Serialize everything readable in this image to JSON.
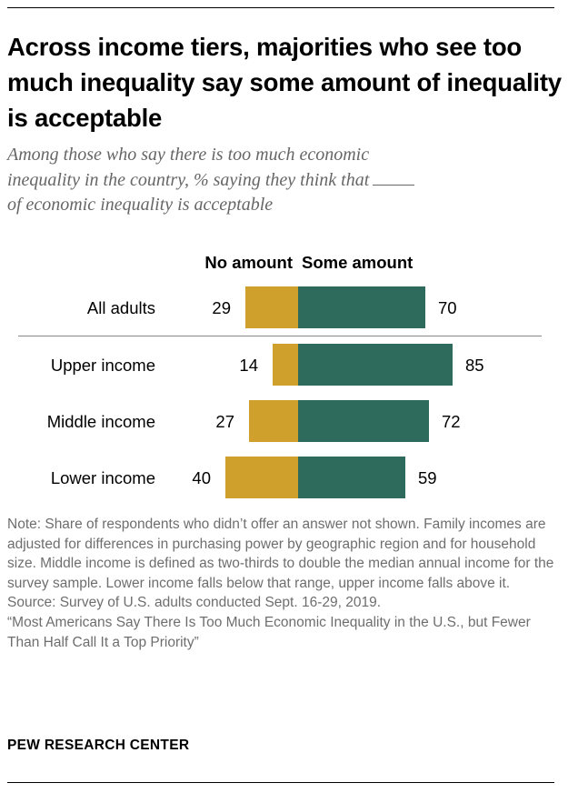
{
  "title": "Across income tiers, majorities who see too much inequality say some amount of inequality is acceptable",
  "subtitle_line1": "Among those who say there is too much economic",
  "subtitle_line2": "inequality in the country, % saying they think that",
  "subtitle_line3": "of economic inequality is acceptable",
  "notes": {
    "note": "Note: Share of respondents who didn’t offer an answer not shown. Family incomes are adjusted for differences in purchasing power by geographic region and for household size. Middle income is defined as two-thirds to double the median annual income for the survey sample. Lower income falls below that range, upper income falls above it.",
    "source": "Source: Survey of U.S. adults conducted Sept. 16-29, 2019.",
    "report": "“Most Americans Say There Is Too Much Economic Inequality in the U.S., but Fewer Than Half Call It a Top Priority”"
  },
  "brand": "PEW RESEARCH CENTER",
  "colors": {
    "no_amount": "#cfa02b",
    "some_amount": "#2e6b5c"
  },
  "chart_data": {
    "type": "bar",
    "orientation": "horizontal-diverging",
    "categories": [
      "All adults",
      "Upper income",
      "Middle income",
      "Lower income"
    ],
    "series": [
      {
        "name": "No amount",
        "values": [
          29,
          14,
          27,
          40
        ]
      },
      {
        "name": "Some amount",
        "values": [
          70,
          85,
          72,
          59
        ]
      }
    ],
    "title": "",
    "xlabel": "",
    "ylabel": "",
    "grid": false,
    "legend": "top"
  }
}
